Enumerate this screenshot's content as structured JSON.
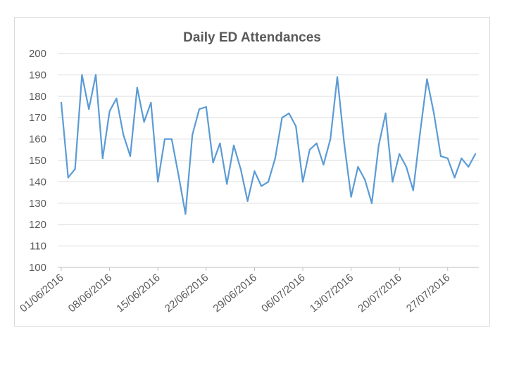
{
  "chart_data": {
    "type": "line",
    "title": "Daily ED Attendances",
    "xlabel": "",
    "ylabel": "",
    "ylim": [
      100,
      200
    ],
    "yticks": [
      100,
      110,
      120,
      130,
      140,
      150,
      160,
      170,
      180,
      190,
      200
    ],
    "xtick_labels": [
      "01/06/2016",
      "08/06/2016",
      "15/06/2016",
      "22/06/2016",
      "29/06/2016",
      "06/07/2016",
      "13/07/2016",
      "20/07/2016",
      "27/07/2016"
    ],
    "grid": true,
    "legend": "none",
    "line_color": "#5b9bd5",
    "start_date": "01/06/2016",
    "series": [
      {
        "name": "Daily ED Attendances",
        "values": [
          177,
          142,
          146,
          190,
          174,
          190,
          151,
          173,
          179,
          162,
          152,
          184,
          168,
          177,
          140,
          160,
          160,
          143,
          125,
          162,
          174,
          175,
          149,
          158,
          139,
          157,
          146,
          131,
          145,
          138,
          140,
          151,
          170,
          172,
          166,
          140,
          155,
          158,
          148,
          160,
          189,
          158,
          133,
          147,
          141,
          130,
          157,
          172,
          140,
          153,
          147,
          136,
          163,
          188,
          172,
          152,
          151,
          142,
          151,
          147,
          153
        ]
      }
    ]
  }
}
